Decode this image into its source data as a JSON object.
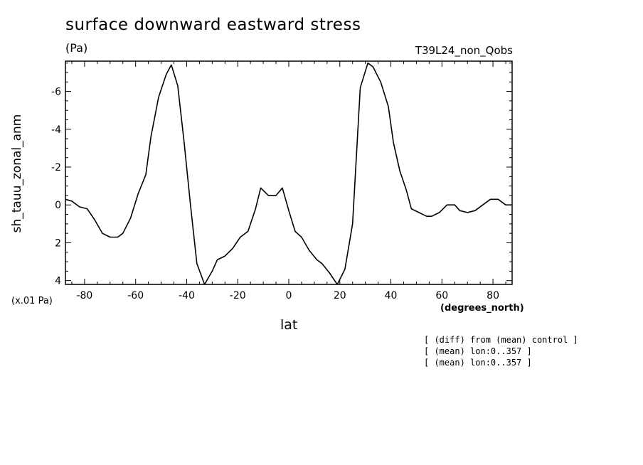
{
  "chart_data": {
    "type": "line",
    "title": "surface downward eastward stress",
    "units": "(Pa)",
    "run_label": "T39L24_non_Qobs",
    "xlabel": "lat",
    "x_units": "(degrees_north)",
    "ylabel": "sh_tauu_zonal_anm",
    "y_scale_note": "(x.01 Pa)",
    "xlim": [
      -87.5,
      87.5
    ],
    "ylim": [
      4.2,
      -7.6
    ],
    "x_ticks": [
      "-80",
      "-60",
      "-40",
      "-20",
      "0",
      "20",
      "40",
      "60",
      "80"
    ],
    "y_ticks": [
      "-6",
      "-4",
      "-2",
      "0",
      "2",
      "4"
    ],
    "grid": false,
    "series": [
      {
        "x": [
          -87.5,
          -85,
          -82,
          -79,
          -76,
          -73,
          -70,
          -67,
          -65,
          -62,
          -59,
          -56,
          -54,
          -51,
          -48,
          -46,
          -43.5,
          -41,
          -38.5,
          -36,
          -33,
          -30,
          -28,
          -25,
          -22,
          -19,
          -16,
          -13,
          -11,
          -8,
          -5,
          -2.5,
          0,
          2.5,
          5,
          8,
          11,
          13,
          16,
          19,
          22,
          25,
          28,
          31,
          33,
          36,
          39,
          41,
          43.5,
          46,
          48,
          51,
          54,
          56,
          59,
          62,
          65,
          67,
          70,
          73,
          76,
          79,
          82,
          85,
          87.5
        ],
        "y": [
          -0.3,
          -0.2,
          0.1,
          0.2,
          0.8,
          1.5,
          1.7,
          1.7,
          1.5,
          0.7,
          -0.6,
          -1.6,
          -3.6,
          -5.7,
          -6.9,
          -7.4,
          -6.3,
          -3.3,
          0.0,
          3.1,
          4.3,
          3.5,
          2.9,
          2.7,
          2.3,
          1.7,
          1.4,
          0.2,
          -0.9,
          -0.5,
          -0.5,
          -0.9,
          0.3,
          1.4,
          1.7,
          2.4,
          2.9,
          3.1,
          3.6,
          4.3,
          3.4,
          1.0,
          -6.2,
          -7.5,
          -7.3,
          -6.5,
          -5.2,
          -3.3,
          -1.8,
          -0.8,
          0.2,
          0.4,
          0.6,
          0.6,
          0.4,
          0.0,
          0.0,
          0.3,
          0.4,
          0.3,
          0.0,
          -0.3,
          -0.3,
          0.0,
          0.0
        ]
      }
    ],
    "notes": [
      "[ (diff) from (mean) control ]",
      "[ (mean) lon:0..357 ]",
      "[ (mean) lon:0..357 ]"
    ]
  }
}
